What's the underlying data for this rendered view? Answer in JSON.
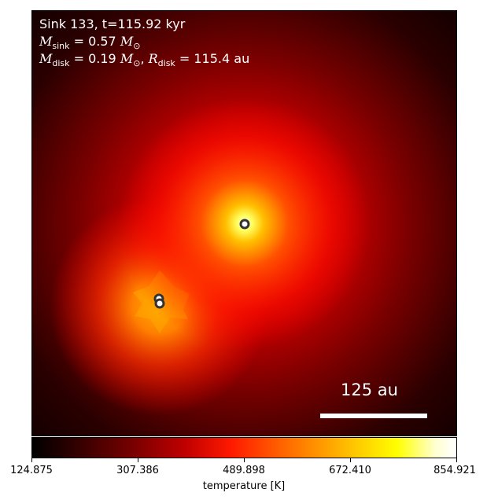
{
  "info": {
    "line1": "Sink 133, t=115.92 kyr",
    "msink_symbol": "M",
    "msink_sub": "sink",
    "msink_value": " = 0.57",
    "msun_symbol": "M",
    "msun_sub": "⊙",
    "mdisk_symbol": "M",
    "mdisk_sub": "disk",
    "mdisk_value": " = 0.19",
    "rdisk_symbol": "R",
    "rdisk_sub": "disk",
    "rdisk_value": " = 115.4 au"
  },
  "scale_bar": {
    "label": "125 au"
  },
  "colorbar": {
    "label": "temperature [K]",
    "ticks": [
      "124.875",
      "307.386",
      "489.898",
      "672.410",
      "854.921"
    ]
  },
  "colors": {
    "ring_stroke": "#333333",
    "ring_fill": "#ffffff"
  }
}
